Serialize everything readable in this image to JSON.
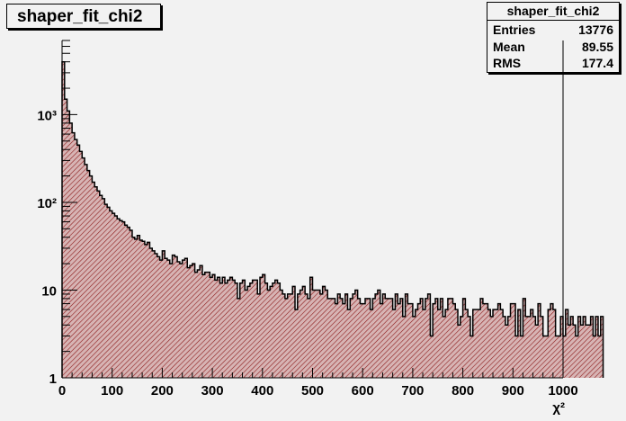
{
  "histogram": {
    "title": "shaper_fit_chi2"
  },
  "stats": {
    "name": "shaper_fit_chi2",
    "entries_label": "Entries",
    "entries": "13776",
    "mean_label": "Mean",
    "mean": "89.55",
    "rms_label": "RMS",
    "rms": "177.4"
  },
  "colors": {
    "background": "#f2f2f2",
    "fill": "#c8a0a0",
    "hatch": "#8b1a1a",
    "line": "#000000"
  },
  "chart_data": {
    "type": "bar",
    "title": "shaper_fit_chi2",
    "xlabel": "χ²",
    "ylabel": "",
    "yscale": "log",
    "xlim": [
      0,
      1000
    ],
    "ylim": [
      1,
      7000
    ],
    "bin_width": 5,
    "x_ticks": [
      "0",
      "100",
      "200",
      "300",
      "400",
      "500",
      "600",
      "700",
      "800",
      "900",
      "1000"
    ],
    "y_ticks": [
      {
        "value": 1,
        "label": "1"
      },
      {
        "value": 10,
        "label": "10"
      },
      {
        "value": 100,
        "label": "10²"
      },
      {
        "value": 1000,
        "label": "10³"
      }
    ],
    "grid": false,
    "legend": "top-right",
    "values": [
      4000,
      1500,
      1100,
      800,
      620,
      520,
      450,
      380,
      320,
      270,
      230,
      200,
      170,
      150,
      135,
      120,
      110,
      95,
      88,
      80,
      75,
      70,
      65,
      62,
      60,
      55,
      52,
      48,
      40,
      38,
      42,
      37,
      36,
      33,
      35,
      30,
      28,
      26,
      24,
      22,
      28,
      23,
      22,
      20,
      25,
      24,
      21,
      20,
      22,
      23,
      18,
      19,
      20,
      16,
      17,
      19,
      15,
      16,
      16,
      14,
      15,
      13,
      14,
      12,
      14,
      12,
      13,
      14,
      13,
      12,
      8,
      12,
      13,
      10,
      11,
      12,
      13,
      13,
      9,
      14,
      15,
      12,
      10,
      11,
      12,
      13,
      12,
      10,
      9,
      8,
      9,
      9,
      11,
      6,
      9,
      10,
      11,
      9,
      8,
      14,
      10,
      10,
      10,
      9,
      11,
      10,
      8,
      8,
      8,
      7,
      9,
      8,
      7,
      9,
      6,
      8,
      9,
      10,
      8,
      7,
      7,
      8,
      8,
      6,
      8,
      9,
      10,
      7,
      9,
      8,
      8,
      8,
      6,
      9,
      7,
      8,
      5,
      9,
      7,
      7,
      5,
      6,
      7,
      8,
      6,
      8,
      9,
      3,
      7,
      8,
      6,
      8,
      5,
      6,
      8,
      8,
      7,
      6,
      4,
      5,
      8,
      6,
      5,
      3,
      6,
      6,
      6,
      8,
      7,
      7,
      6,
      5,
      6,
      6,
      7,
      6,
      5,
      4,
      5,
      7,
      7,
      3,
      6,
      3,
      8,
      5,
      5,
      6,
      5,
      4,
      7,
      5,
      3,
      3,
      6,
      7,
      6,
      3,
      3,
      5,
      3,
      6,
      4,
      5,
      4,
      3,
      5,
      4,
      5,
      4,
      4,
      5,
      3,
      5,
      3,
      5
    ]
  }
}
